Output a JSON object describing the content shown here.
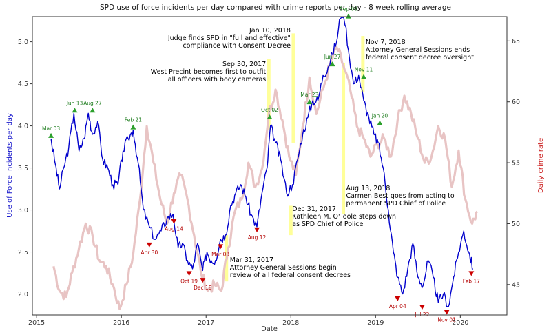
{
  "chart_data": {
    "type": "line",
    "title": "SPD use of force incidents per day compared with crime reports per day - 8 week rolling average",
    "xlabel": "Date",
    "ylabel_left": "Use of Force Incidents per day",
    "ylabel_right": "Daily crime rate",
    "grid": false,
    "x_ticks": [
      "2015",
      "2016",
      "2017",
      "2018",
      "2019",
      "2020"
    ],
    "y_left_ticks": [
      "2.0",
      "2.5",
      "3.0",
      "3.5",
      "4.0",
      "4.5",
      "5.0"
    ],
    "y_right_ticks": [
      "45",
      "50",
      "55",
      "60",
      "65"
    ],
    "xlim": [
      2014.95,
      2020.55
    ],
    "ylim_left": [
      1.75,
      5.3
    ],
    "ylim_right": [
      42.5,
      67
    ],
    "colors": {
      "use_of_force": "#0000cc",
      "crime": "#e8c4c4",
      "peak": "#2ca02c",
      "trough": "#cc0000",
      "event": "#ffff99",
      "left_axis_label": "#1a1acc",
      "right_axis_label": "#cc2222"
    },
    "series": [
      {
        "name": "Use of Force Incidents per day",
        "axis": "left",
        "x": [
          2015.17,
          2015.22,
          2015.27,
          2015.32,
          2015.38,
          2015.44,
          2015.5,
          2015.56,
          2015.61,
          2015.66,
          2015.72,
          2015.78,
          2015.84,
          2015.9,
          2015.96,
          2016.02,
          2016.08,
          2016.14,
          2016.2,
          2016.26,
          2016.33,
          2016.4,
          2016.47,
          2016.54,
          2016.61,
          2016.67,
          2016.72,
          2016.78,
          2016.84,
          2016.9,
          2016.96,
          2017.01,
          2017.06,
          2017.11,
          2017.17,
          2017.23,
          2017.29,
          2017.35,
          2017.41,
          2017.47,
          2017.53,
          2017.6,
          2017.66,
          2017.72,
          2017.76,
          2017.82,
          2017.88,
          2017.95,
          2018.02,
          2018.08,
          2018.14,
          2018.2,
          2018.26,
          2018.32,
          2018.38,
          2018.44,
          2018.49,
          2018.55,
          2018.61,
          2018.68,
          2018.74,
          2018.8,
          2018.86,
          2018.92,
          2018.98,
          2019.03,
          2019.09,
          2019.15,
          2019.21,
          2019.26,
          2019.32,
          2019.38,
          2019.44,
          2019.5,
          2019.56,
          2019.62,
          2019.68,
          2019.74,
          2019.8,
          2019.86,
          2019.92,
          2019.98,
          2020.04,
          2020.1,
          2020.15
        ],
        "y": [
          3.85,
          3.55,
          3.25,
          3.5,
          3.75,
          4.15,
          3.7,
          3.85,
          4.15,
          3.9,
          4.05,
          3.6,
          3.5,
          3.3,
          3.3,
          3.7,
          3.85,
          3.95,
          3.55,
          3.0,
          2.8,
          2.65,
          2.75,
          2.9,
          2.95,
          2.55,
          2.6,
          2.4,
          2.3,
          2.6,
          2.28,
          2.5,
          2.4,
          2.4,
          2.65,
          2.7,
          3.05,
          3.2,
          3.3,
          3.15,
          2.95,
          2.8,
          3.2,
          3.5,
          4.0,
          3.8,
          3.6,
          3.2,
          3.3,
          3.6,
          3.9,
          4.1,
          4.3,
          4.3,
          4.6,
          4.7,
          4.85,
          5.05,
          5.5,
          4.9,
          4.5,
          4.6,
          4.3,
          4.1,
          3.9,
          3.8,
          3.5,
          3.0,
          2.5,
          2.2,
          2.0,
          2.3,
          2.6,
          2.2,
          2.1,
          2.4,
          2.2,
          1.9,
          2.0,
          1.85,
          2.2,
          2.5,
          2.75,
          2.5,
          2.3
        ]
      },
      {
        "name": "Daily crime rate",
        "axis": "right",
        "x": [
          2015.2,
          2015.27,
          2015.35,
          2015.42,
          2015.5,
          2015.58,
          2015.66,
          2015.74,
          2015.82,
          2015.9,
          2015.98,
          2016.06,
          2016.14,
          2016.22,
          2016.3,
          2016.38,
          2016.46,
          2016.54,
          2016.62,
          2016.7,
          2016.78,
          2016.86,
          2016.94,
          2017.02,
          2017.1,
          2017.18,
          2017.26,
          2017.34,
          2017.42,
          2017.5,
          2017.58,
          2017.66,
          2017.74,
          2017.82,
          2017.9,
          2017.98,
          2018.06,
          2018.14,
          2018.22,
          2018.3,
          2018.38,
          2018.46,
          2018.54,
          2018.62,
          2018.7,
          2018.78,
          2018.86,
          2018.94,
          2019.02,
          2019.1,
          2019.18,
          2019.26,
          2019.34,
          2019.42,
          2019.5,
          2019.58,
          2019.66,
          2019.74,
          2019.82,
          2019.9,
          2019.98,
          2020.06,
          2020.14,
          2020.2
        ],
        "y": [
          46.5,
          44.5,
          44.0,
          46.0,
          48.0,
          50.0,
          49.0,
          47.0,
          46.5,
          45.0,
          43.0,
          45.0,
          47.5,
          52.0,
          58.0,
          55.0,
          52.0,
          50.0,
          52.5,
          54.0,
          52.0,
          49.0,
          46.0,
          44.5,
          45.0,
          44.5,
          48.0,
          51.0,
          52.0,
          55.0,
          53.0,
          54.5,
          59.0,
          61.0,
          58.5,
          55.5,
          54.0,
          58.0,
          62.0,
          59.0,
          61.0,
          63.0,
          64.5,
          63.0,
          61.0,
          58.0,
          57.0,
          55.5,
          56.5,
          57.0,
          55.5,
          58.5,
          60.5,
          59.0,
          57.0,
          55.0,
          55.5,
          58.0,
          57.0,
          53.0,
          56.0,
          52.0,
          50.0,
          51.0
        ]
      }
    ],
    "peaks": [
      {
        "label": "Mar 03",
        "x": 2015.17,
        "y": 3.85
      },
      {
        "label": "Jun 13",
        "x": 2015.45,
        "y": 4.15
      },
      {
        "label": "Aug 27",
        "x": 2015.66,
        "y": 4.15
      },
      {
        "label": "Feb 21",
        "x": 2016.14,
        "y": 3.95
      },
      {
        "label": "Oct 02",
        "x": 2017.75,
        "y": 4.07
      },
      {
        "label": "Mar 23",
        "x": 2018.22,
        "y": 4.25
      },
      {
        "label": "Jun 27",
        "x": 2018.49,
        "y": 4.7
      },
      {
        "label": "Sep 06",
        "x": 2018.68,
        "y": 5.27
      },
      {
        "label": "Nov 11",
        "x": 2018.86,
        "y": 4.55
      },
      {
        "label": "Jan 20",
        "x": 2019.05,
        "y": 4.0
      }
    ],
    "troughs": [
      {
        "label": "Apr 30",
        "x": 2016.33,
        "y": 2.62
      },
      {
        "label": "Aug 14",
        "x": 2016.62,
        "y": 2.9
      },
      {
        "label": "Oct 19",
        "x": 2016.8,
        "y": 2.28
      },
      {
        "label": "Dec 18",
        "x": 2016.96,
        "y": 2.2
      },
      {
        "label": "Mar 03",
        "x": 2017.17,
        "y": 2.6
      },
      {
        "label": "Aug 12",
        "x": 2017.6,
        "y": 2.8
      },
      {
        "label": "Apr 04",
        "x": 2019.26,
        "y": 1.98
      },
      {
        "label": "Jul 22",
        "x": 2019.55,
        "y": 1.88
      },
      {
        "label": "Nov 01",
        "x": 2019.84,
        "y": 1.82
      },
      {
        "label": "Feb 17",
        "x": 2020.13,
        "y": 2.28
      }
    ],
    "events": [
      {
        "x": 2017.24,
        "y_top": 2.7,
        "y_bottom": 2.15,
        "lines": [
          "Mar 31, 2017",
          "Attorney General Sessions begin",
          "review of all federal consent decrees"
        ]
      },
      {
        "x": 2017.74,
        "y_top": 4.8,
        "y_bottom": 3.95,
        "lines": [
          "Sep 30, 2017",
          "West Precint becomes first to outfit",
          "all officers with body cameras"
        ]
      },
      {
        "x": 2018.0,
        "y_top": 3.05,
        "y_bottom": 2.7,
        "lines": [
          "Dec 31, 2017",
          "Kathleen M. O'Toole steps down",
          "as SPD Chief of Police"
        ]
      },
      {
        "x": 2018.03,
        "y_top": 5.1,
        "y_bottom": 3.8,
        "lines": [
          "Jan 10, 2018",
          "Judge finds SPD in \"full and effective\"",
          "compliance with Consent Decree"
        ]
      },
      {
        "x": 2018.62,
        "y_top": 4.75,
        "y_bottom": 2.95,
        "lines": [
          "Aug 13, 2018",
          "Carmen Best goes from acting to",
          "permanent SPD Chief of Police"
        ]
      },
      {
        "x": 2018.85,
        "y_top": 5.07,
        "y_bottom": 4.4,
        "lines": [
          "Nov 7, 2018",
          "Attorney General Sessions ends",
          "federal consent decree oversight"
        ]
      }
    ]
  }
}
